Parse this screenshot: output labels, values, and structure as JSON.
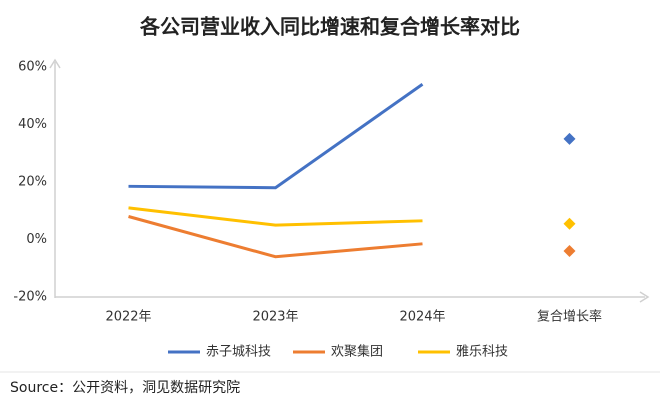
{
  "chart_data": {
    "type": "line",
    "title": "各公司营业收入同比增速和复合增长率对比",
    "categories": [
      "2022年",
      "2023年",
      "2024年",
      "复合增长率"
    ],
    "series": [
      {
        "name": "赤子城科技",
        "color": "#4472c4",
        "values": [
          18.5,
          18,
          54,
          35
        ]
      },
      {
        "name": "欢聚集团",
        "color": "#ed7d31",
        "values": [
          8,
          -6,
          -1.5,
          -4
        ]
      },
      {
        "name": "雅乐科技",
        "color": "#ffc000",
        "values": [
          11,
          5,
          6.5,
          5.5
        ]
      }
    ],
    "ylim": [
      -20,
      60
    ],
    "yticks": [
      {
        "value": -20,
        "label": "-20%"
      },
      {
        "value": 0,
        "label": "0%"
      },
      {
        "value": 20,
        "label": "20%"
      },
      {
        "value": 40,
        "label": "40%"
      },
      {
        "value": 60,
        "label": "60%"
      }
    ],
    "grid": false,
    "legend": "bottom",
    "source": "Source：公开资料，洞见数据研究院"
  }
}
